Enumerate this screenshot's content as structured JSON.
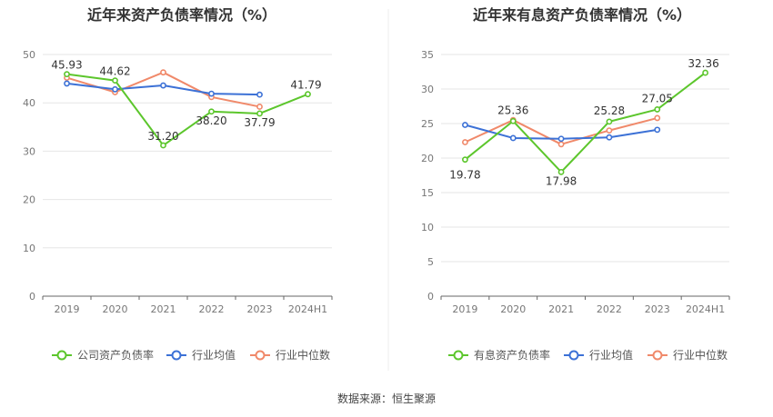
{
  "source_note": "数据来源：恒生聚源",
  "colors": {
    "company": "#5cc62c",
    "industry_avg": "#3c71d6",
    "industry_median": "#f0896a"
  },
  "chart_data": [
    {
      "type": "line",
      "title": "近年来资产负债率情况（%）",
      "x": [
        "2019",
        "2020",
        "2021",
        "2022",
        "2023",
        "2024H1"
      ],
      "ylim": [
        0,
        50
      ],
      "yticks": [
        0,
        10,
        20,
        30,
        40,
        50
      ],
      "grid": true,
      "legend_position": "bottom",
      "series": [
        {
          "name": "公司资产负债率",
          "color": "#5cc62c",
          "values": [
            45.93,
            44.62,
            31.2,
            38.2,
            37.79,
            41.79
          ],
          "labels": [
            "45.93",
            "44.62",
            "31.20",
            "38.20",
            "37.79",
            "41.79"
          ]
        },
        {
          "name": "行业均值",
          "color": "#3c71d6",
          "values": [
            44.0,
            42.8,
            43.6,
            41.9,
            41.7,
            null
          ]
        },
        {
          "name": "行业中位数",
          "color": "#f0896a",
          "values": [
            45.2,
            42.2,
            46.3,
            41.2,
            39.2,
            null
          ]
        }
      ]
    },
    {
      "type": "line",
      "title": "近年来有息资产负债率情况（%）",
      "x": [
        "2019",
        "2020",
        "2021",
        "2022",
        "2023",
        "2024H1"
      ],
      "ylim": [
        0,
        35
      ],
      "yticks": [
        0,
        5,
        10,
        15,
        20,
        25,
        30,
        35
      ],
      "grid": true,
      "legend_position": "bottom",
      "series": [
        {
          "name": "有息资产负债率",
          "color": "#5cc62c",
          "values": [
            19.78,
            25.36,
            17.98,
            25.28,
            27.05,
            32.36
          ],
          "labels": [
            "19.78",
            "25.36",
            "17.98",
            "25.28",
            "27.05",
            "32.36"
          ]
        },
        {
          "name": "行业均值",
          "color": "#3c71d6",
          "values": [
            24.8,
            22.9,
            22.8,
            23.0,
            24.1,
            null
          ]
        },
        {
          "name": "行业中位数",
          "color": "#f0896a",
          "values": [
            22.3,
            25.5,
            22.0,
            24.0,
            25.8,
            null
          ]
        }
      ]
    }
  ]
}
